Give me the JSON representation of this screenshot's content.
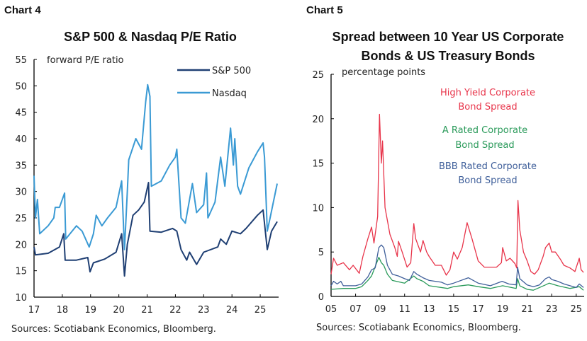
{
  "chart_data": [
    {
      "type": "line",
      "header": "Chart 4",
      "title": "S&P 500 & Nasdaq P/E Ratio",
      "ylabel": "forward P/E ratio",
      "source": "Sources: Scotiabank Economics, Bloomberg.",
      "ylim": [
        10,
        55
      ],
      "yticks": [
        10,
        15,
        20,
        25,
        30,
        35,
        40,
        45,
        50,
        55
      ],
      "xlim": [
        2017,
        2025.65
      ],
      "xticks": [
        {
          "v": 2017,
          "label": "17"
        },
        {
          "v": 2018,
          "label": "18"
        },
        {
          "v": 2019,
          "label": "19"
        },
        {
          "v": 2020,
          "label": "20"
        },
        {
          "v": 2021,
          "label": "21"
        },
        {
          "v": 2022,
          "label": "22"
        },
        {
          "v": 2023,
          "label": "23"
        },
        {
          "v": 2024,
          "label": "24"
        },
        {
          "v": 2025,
          "label": "25"
        }
      ],
      "legend_placement": "top-right",
      "grid": false,
      "series": [
        {
          "name": "S&P 500",
          "color": "#1f3f73",
          "x": [
            2017.0,
            2017.05,
            2017.5,
            2017.9,
            2018.05,
            2018.1,
            2018.5,
            2018.9,
            2018.98,
            2019.1,
            2019.5,
            2019.9,
            2020.1,
            2020.2,
            2020.3,
            2020.5,
            2020.7,
            2020.9,
            2021.05,
            2021.1,
            2021.5,
            2021.9,
            2022.05,
            2022.2,
            2022.4,
            2022.5,
            2022.75,
            2023.0,
            2023.5,
            2023.6,
            2023.8,
            2024.0,
            2024.3,
            2024.5,
            2024.9,
            2025.1,
            2025.25,
            2025.4,
            2025.6
          ],
          "y": [
            19.5,
            18,
            18.3,
            19.5,
            22,
            17,
            17,
            17.5,
            14.8,
            16.5,
            17.2,
            18.5,
            22,
            14,
            20,
            25.5,
            26.5,
            28,
            31.7,
            22.5,
            22.3,
            23,
            22.5,
            19,
            17,
            18.5,
            16.2,
            18.5,
            19.5,
            21,
            20,
            22.5,
            22,
            23,
            25.5,
            26.5,
            19,
            22.5,
            24.3
          ]
        },
        {
          "name": "Nasdaq",
          "color": "#3a9ad4",
          "x": [
            2017.0,
            2017.05,
            2017.12,
            2017.2,
            2017.5,
            2017.7,
            2017.75,
            2017.9,
            2018.08,
            2018.12,
            2018.5,
            2018.7,
            2018.95,
            2019.1,
            2019.2,
            2019.4,
            2019.6,
            2019.9,
            2020.1,
            2020.2,
            2020.3,
            2020.35,
            2020.6,
            2020.8,
            2020.95,
            2021.02,
            2021.1,
            2021.15,
            2021.5,
            2021.8,
            2022.0,
            2022.05,
            2022.2,
            2022.35,
            2022.6,
            2022.75,
            2023.0,
            2023.1,
            2023.15,
            2023.4,
            2023.6,
            2023.75,
            2023.95,
            2024.05,
            2024.1,
            2024.2,
            2024.3,
            2024.6,
            2024.9,
            2025.1,
            2025.15,
            2025.25,
            2025.35,
            2025.6
          ],
          "y": [
            33,
            25,
            28.5,
            22,
            23.5,
            25,
            27,
            27,
            29.7,
            21,
            23.5,
            22.5,
            19.5,
            22,
            25.5,
            23.5,
            25,
            27,
            32,
            19,
            30,
            36,
            40,
            38,
            47,
            50.2,
            48,
            31,
            32,
            35,
            36.5,
            38,
            25,
            24,
            31.5,
            26,
            27.5,
            33.5,
            25,
            28,
            36.5,
            31,
            42,
            35,
            40,
            31,
            29.5,
            34.5,
            37.5,
            39.2,
            36.5,
            22.5,
            25,
            31.5
          ]
        }
      ]
    },
    {
      "type": "line",
      "header": "Chart 5",
      "title": [
        "Spread between 10 Year US Corporate",
        "Bonds & US Treasury Bonds"
      ],
      "ylabel": "percentage points",
      "source": "Sources: Scotiabank Economics, Bloomberg.",
      "ylim": [
        0,
        25
      ],
      "yticks": [
        0,
        5,
        10,
        15,
        20,
        25
      ],
      "xlim": [
        2005,
        2025.65
      ],
      "xticks": [
        {
          "v": 2005,
          "label": "05"
        },
        {
          "v": 2007,
          "label": "07"
        },
        {
          "v": 2009,
          "label": "09"
        },
        {
          "v": 2011,
          "label": "11"
        },
        {
          "v": 2013,
          "label": "13"
        },
        {
          "v": 2015,
          "label": "15"
        },
        {
          "v": 2017,
          "label": "17"
        },
        {
          "v": 2019,
          "label": "19"
        },
        {
          "v": 2021,
          "label": "21"
        },
        {
          "v": 2023,
          "label": "23"
        },
        {
          "v": 2025,
          "label": "25"
        }
      ],
      "grid": false,
      "series": [
        {
          "name": [
            "High Yield Corporate",
            "Bond Spread"
          ],
          "color": "#e8344a",
          "x": [
            2005.0,
            2005.2,
            2005.5,
            2006.0,
            2006.5,
            2006.8,
            2007.3,
            2007.6,
            2008.0,
            2008.3,
            2008.5,
            2008.8,
            2008.95,
            2009.1,
            2009.2,
            2009.4,
            2009.8,
            2010.2,
            2010.4,
            2010.5,
            2010.8,
            2011.2,
            2011.5,
            2011.75,
            2011.9,
            2012.3,
            2012.5,
            2012.8,
            2013.0,
            2013.5,
            2014.0,
            2014.4,
            2014.7,
            2015.0,
            2015.3,
            2015.7,
            2016.1,
            2016.5,
            2016.8,
            2017.0,
            2017.5,
            2018.0,
            2018.5,
            2018.9,
            2019.0,
            2019.3,
            2019.6,
            2020.0,
            2020.15,
            2020.25,
            2020.4,
            2020.7,
            2021.0,
            2021.3,
            2021.6,
            2021.9,
            2022.3,
            2022.5,
            2022.8,
            2023.0,
            2023.3,
            2023.7,
            2024.0,
            2024.5,
            2024.9,
            2025.25,
            2025.4,
            2025.6
          ],
          "y": [
            2.5,
            4.3,
            3.5,
            3.8,
            3.0,
            3.5,
            2.6,
            4.5,
            6.5,
            7.8,
            6,
            9,
            20.5,
            15,
            17.5,
            10,
            7,
            5.5,
            4.5,
            6.2,
            5,
            3.3,
            3.8,
            8.2,
            6.5,
            5,
            6.3,
            5,
            4.5,
            3.5,
            3.5,
            2.4,
            3,
            5,
            4.2,
            5.5,
            8.3,
            6.5,
            5,
            4,
            3.3,
            3.3,
            3.3,
            3.8,
            5.5,
            4,
            4.3,
            3.7,
            3.2,
            10.8,
            7.5,
            5,
            4,
            2.8,
            2.5,
            3,
            4.5,
            5.5,
            6,
            5,
            5,
            4.2,
            3.5,
            3.2,
            2.8,
            4.3,
            3,
            2.7
          ]
        },
        {
          "name": [
            "A Rated Corporate",
            "Bond Spread"
          ],
          "color": "#2a9a5a",
          "x": [
            2005.0,
            2006.0,
            2007.0,
            2007.5,
            2008.0,
            2008.3,
            2008.9,
            2009.1,
            2009.3,
            2009.6,
            2010.0,
            2011.0,
            2011.75,
            2012.0,
            2012.5,
            2013.0,
            2014.5,
            2015.0,
            2016.2,
            2017.0,
            2018.0,
            2019.0,
            2020.1,
            2020.22,
            2020.4,
            2021.0,
            2021.5,
            2022.5,
            2022.8,
            2023.5,
            2024.5,
            2025.25,
            2025.6
          ],
          "y": [
            0.8,
            0.9,
            0.9,
            1.1,
            1.8,
            2.3,
            4.4,
            3.8,
            3.5,
            2.5,
            1.8,
            1.5,
            2.3,
            2.0,
            1.7,
            1.2,
            0.9,
            1.1,
            1.3,
            1.1,
            0.9,
            1.2,
            0.9,
            2.0,
            1.2,
            0.8,
            0.7,
            1.3,
            1.5,
            1.2,
            0.9,
            1.1,
            0.7
          ]
        },
        {
          "name": [
            "BBB Rated Corporate",
            "Bond Spread"
          ],
          "color": "#3f5f9a",
          "x": [
            2005.0,
            2005.2,
            2005.5,
            2005.8,
            2006.0,
            2007.0,
            2007.5,
            2008.0,
            2008.3,
            2008.6,
            2008.9,
            2009.1,
            2009.3,
            2009.6,
            2010.0,
            2010.5,
            2011.0,
            2011.4,
            2011.75,
            2012.0,
            2012.5,
            2013.0,
            2014.0,
            2014.5,
            2015.0,
            2016.0,
            2016.2,
            2017.0,
            2018.0,
            2018.95,
            2019.5,
            2020.1,
            2020.22,
            2020.4,
            2021.0,
            2021.5,
            2022.0,
            2022.5,
            2022.8,
            2023.0,
            2023.5,
            2024.0,
            2024.5,
            2025.0,
            2025.25,
            2025.6
          ],
          "y": [
            1.2,
            1.7,
            1.4,
            1.7,
            1.2,
            1.2,
            1.4,
            2.2,
            3,
            3.2,
            5.5,
            5.8,
            5.5,
            3.5,
            2.5,
            2.3,
            2.0,
            1.8,
            2.8,
            2.5,
            2.1,
            1.8,
            1.6,
            1.3,
            1.5,
            2.0,
            2.1,
            1.5,
            1.2,
            1.7,
            1.4,
            1.3,
            3.3,
            2.0,
            1.3,
            1.1,
            1.3,
            2.0,
            2.2,
            1.9,
            1.7,
            1.4,
            1.2,
            1.0,
            1.4,
            1.0
          ]
        }
      ]
    }
  ]
}
